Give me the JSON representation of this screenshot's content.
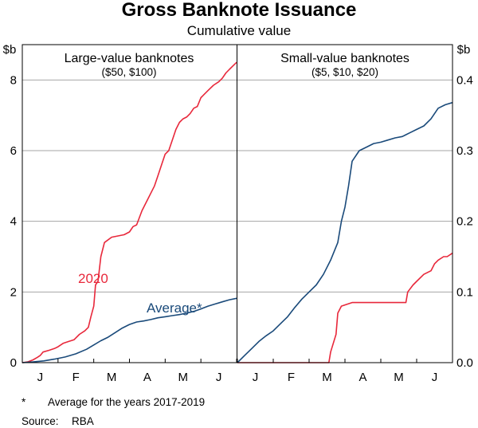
{
  "chart_data": {
    "type": "line",
    "title": "Gross Banknote Issuance",
    "subtitle": "Cumulative value",
    "left_unit": "$b",
    "right_unit": "$b",
    "x_tick_labels": [
      "J",
      "F",
      "M",
      "A",
      "M",
      "J"
    ],
    "left_panel": {
      "title": "Large-value banknotes",
      "subtitle": "($50, $100)",
      "ylim": [
        0,
        9
      ],
      "y_ticks": [
        0,
        2,
        4,
        6,
        8
      ],
      "series": [
        {
          "name": "2020",
          "label": "2020",
          "color": "#e8283b",
          "x": [
            0,
            0.15,
            0.3,
            0.42,
            0.5,
            0.58,
            0.75,
            0.9,
            1.0,
            1.15,
            1.3,
            1.45,
            1.6,
            1.75,
            1.85,
            1.92,
            2.0,
            2.05,
            2.12,
            2.2,
            2.3,
            2.5,
            2.75,
            2.85,
            3.0,
            3.1,
            3.2,
            3.35,
            3.5,
            3.6,
            3.7,
            3.8,
            3.9,
            4.0,
            4.1,
            4.2,
            4.3,
            4.4,
            4.5,
            4.6,
            4.7,
            4.8,
            4.9,
            5.0,
            5.1,
            5.2,
            5.35,
            5.5,
            5.6,
            5.7,
            5.8,
            5.9,
            6.0
          ],
          "values": [
            0.0,
            0.02,
            0.08,
            0.15,
            0.2,
            0.3,
            0.35,
            0.4,
            0.45,
            0.55,
            0.6,
            0.65,
            0.8,
            0.9,
            1.0,
            1.3,
            1.6,
            2.2,
            2.3,
            3.0,
            3.4,
            3.55,
            3.6,
            3.62,
            3.7,
            3.85,
            3.9,
            4.3,
            4.6,
            4.8,
            5.0,
            5.3,
            5.6,
            5.9,
            6.0,
            6.3,
            6.6,
            6.8,
            6.9,
            6.95,
            7.05,
            7.2,
            7.25,
            7.5,
            7.6,
            7.7,
            7.85,
            7.95,
            8.05,
            8.2,
            8.3,
            8.4,
            8.5
          ]
        },
        {
          "name": "Average*",
          "label": "Average*",
          "color": "#1a4a7a",
          "x": [
            0,
            0.3,
            0.6,
            0.9,
            1.2,
            1.5,
            1.8,
            2.0,
            2.2,
            2.4,
            2.6,
            2.8,
            3.0,
            3.2,
            3.4,
            3.6,
            3.8,
            4.0,
            4.2,
            4.4,
            4.6,
            4.8,
            5.0,
            5.2,
            5.4,
            5.6,
            5.8,
            6.0
          ],
          "values": [
            0.0,
            0.02,
            0.05,
            0.1,
            0.16,
            0.25,
            0.38,
            0.5,
            0.62,
            0.72,
            0.85,
            0.98,
            1.08,
            1.15,
            1.18,
            1.22,
            1.27,
            1.3,
            1.33,
            1.36,
            1.4,
            1.45,
            1.52,
            1.6,
            1.66,
            1.72,
            1.78,
            1.82
          ]
        }
      ]
    },
    "right_panel": {
      "title": "Small-value banknotes",
      "subtitle": "($5, $10, $20)",
      "ylim": [
        0,
        0.45
      ],
      "y_ticks": [
        0.0,
        0.1,
        0.2,
        0.3,
        0.4
      ],
      "y_tick_labels": [
        "0.0",
        "0.1",
        "0.2",
        "0.3",
        "0.4"
      ],
      "series": [
        {
          "name": "2020",
          "color": "#e8283b",
          "x": [
            0,
            1.0,
            2.0,
            2.55,
            2.6,
            2.75,
            2.8,
            2.9,
            3.2,
            3.5,
            4.0,
            4.5,
            4.7,
            4.75,
            4.9,
            5.0,
            5.2,
            5.4,
            5.5,
            5.6,
            5.75,
            5.85,
            6.0
          ],
          "values": [
            0.0,
            0.0,
            0.0,
            0.0,
            0.015,
            0.04,
            0.07,
            0.08,
            0.085,
            0.085,
            0.085,
            0.085,
            0.085,
            0.1,
            0.11,
            0.115,
            0.125,
            0.13,
            0.14,
            0.145,
            0.15,
            0.15,
            0.155
          ]
        },
        {
          "name": "Average",
          "color": "#1a4a7a",
          "x": [
            0,
            0.2,
            0.4,
            0.6,
            0.8,
            1.0,
            1.2,
            1.4,
            1.6,
            1.8,
            2.0,
            2.2,
            2.4,
            2.6,
            2.8,
            2.9,
            3.0,
            3.1,
            3.2,
            3.4,
            3.6,
            3.8,
            4.0,
            4.2,
            4.4,
            4.6,
            4.8,
            5.0,
            5.2,
            5.4,
            5.6,
            5.8,
            6.0
          ],
          "values": [
            0.0,
            0.01,
            0.02,
            0.03,
            0.038,
            0.045,
            0.055,
            0.065,
            0.078,
            0.09,
            0.1,
            0.11,
            0.125,
            0.145,
            0.17,
            0.2,
            0.22,
            0.25,
            0.285,
            0.3,
            0.305,
            0.31,
            0.312,
            0.315,
            0.318,
            0.32,
            0.325,
            0.33,
            0.335,
            0.345,
            0.36,
            0.365,
            0.368
          ]
        }
      ]
    }
  },
  "footnote": {
    "marker": "*",
    "text": "Average for the years 2017-2019"
  },
  "source": {
    "label": "Source:",
    "value": "RBA"
  }
}
